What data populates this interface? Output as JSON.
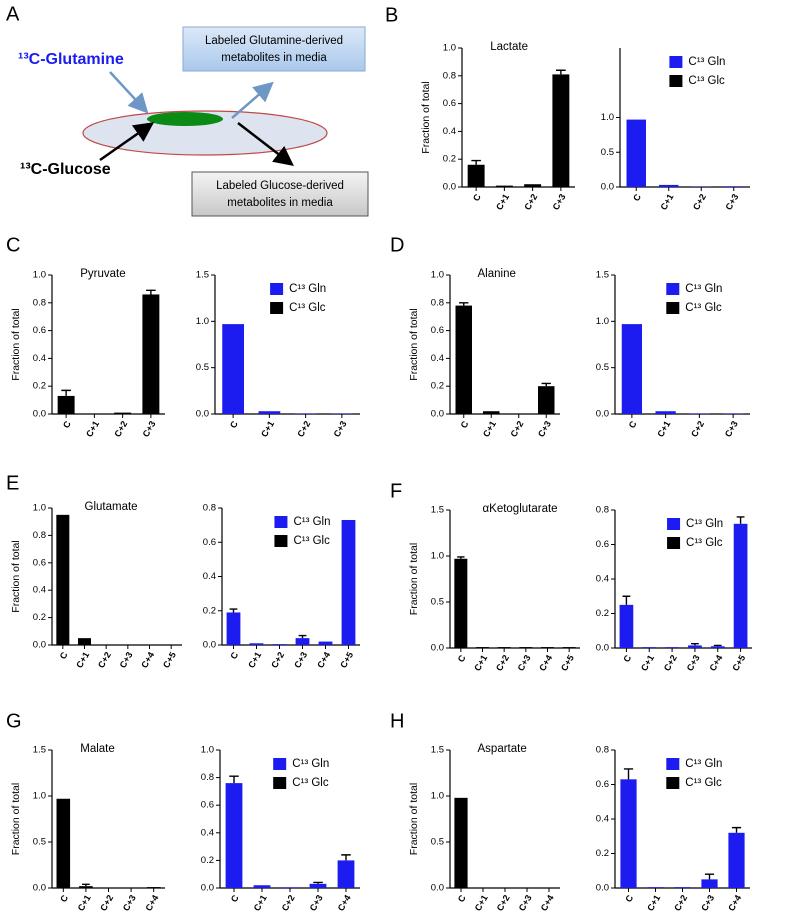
{
  "diagram": {
    "panel": "A",
    "glutamine": "¹³C-Glutamine",
    "glucose": "¹³C-Glucose",
    "glutamine_box": [
      "Labeled Glutamine-derived",
      "metabolites in media"
    ],
    "glucose_box": [
      "Labeled Glucose-derived",
      "metabolites in media"
    ]
  },
  "chart_data": [
    {
      "type": "bar",
      "panel": "B",
      "title": "Lactate",
      "ylabel": "Fraction of total",
      "categories": [
        "C",
        "C+1",
        "C+2",
        "C+3"
      ],
      "values": [
        0.16,
        0.01,
        0.02,
        0.81
      ],
      "errors": [
        0.03,
        null,
        null,
        0.03
      ],
      "color": "#000000",
      "ylim": [
        0,
        1.0
      ],
      "yticks": [
        {
          "value": 0,
          "label": "0.0"
        },
        0.2,
        0.4,
        0.6,
        0.8,
        {
          "value": 1,
          "label": "1.0"
        }
      ]
    },
    {
      "type": "bar",
      "categories": [
        "C",
        "C+1",
        "C+2",
        "C+3"
      ],
      "series": [
        {
          "name": "C¹³ Gln",
          "color": "#1c1cf0",
          "values": [
            0.97,
            0.03,
            0.005,
            0.01
          ],
          "errors": [
            null,
            null,
            null,
            null
          ]
        },
        {
          "name": "C¹³ Glc",
          "color": "#000000",
          "values": [
            null,
            null,
            null,
            null
          ]
        }
      ],
      "ylim": [
        0,
        2.0
      ],
      "yticks": [
        {
          "value": 0,
          "label": "0.0"
        },
        0.5,
        {
          "value": 1,
          "label": "1.0"
        }
      ]
    },
    {
      "type": "bar",
      "panel": "C",
      "title": "Pyruvate",
      "ylabel": "Fraction of total",
      "categories": [
        "C",
        "C+1",
        "C+2",
        "C+3"
      ],
      "values": [
        0.13,
        0.0,
        0.01,
        0.86
      ],
      "errors": [
        0.04,
        null,
        null,
        0.03
      ],
      "color": "#000000",
      "ylim": [
        0,
        1.0
      ],
      "yticks": [
        {
          "value": 0,
          "label": "0.0"
        },
        0.2,
        0.4,
        0.6,
        0.8,
        {
          "value": 1,
          "label": "1.0"
        }
      ]
    },
    {
      "type": "bar",
      "categories": [
        "C",
        "C+1",
        "C+2",
        "C+3"
      ],
      "series": [
        {
          "name": "C¹³ Gln",
          "color": "#1c1cf0",
          "values": [
            0.97,
            0.03,
            0.005,
            0.005
          ],
          "errors": [
            null,
            null,
            null,
            null
          ]
        },
        {
          "name": "C¹³ Glc",
          "color": "#000000",
          "values": [
            null,
            null,
            null,
            null
          ]
        }
      ],
      "ylim": [
        0,
        1.5
      ],
      "yticks": [
        {
          "value": 0,
          "label": "0.0"
        },
        0.5,
        {
          "value": 1,
          "label": "1.0"
        },
        1.5
      ]
    },
    {
      "type": "bar",
      "panel": "D",
      "title": "Alanine",
      "ylabel": "Fraction of total",
      "categories": [
        "C",
        "C+1",
        "C+2",
        "C+3"
      ],
      "values": [
        0.78,
        0.02,
        0.0,
        0.2
      ],
      "errors": [
        0.02,
        null,
        null,
        0.02
      ],
      "color": "#000000",
      "ylim": [
        0,
        1.0
      ],
      "yticks": [
        {
          "value": 0,
          "label": "0.0"
        },
        0.2,
        0.4,
        0.6,
        0.8,
        {
          "value": 1,
          "label": "1.0"
        }
      ]
    },
    {
      "type": "bar",
      "categories": [
        "C",
        "C+1",
        "C+2",
        "C+3"
      ],
      "series": [
        {
          "name": "C¹³ Gln",
          "color": "#1c1cf0",
          "values": [
            0.97,
            0.03,
            0.005,
            0.005
          ],
          "errors": [
            null,
            null,
            null,
            null
          ]
        },
        {
          "name": "C¹³ Glc",
          "color": "#000000",
          "values": [
            null,
            null,
            null,
            null
          ]
        }
      ],
      "ylim": [
        0,
        1.5
      ],
      "yticks": [
        {
          "value": 0,
          "label": "0.0"
        },
        0.5,
        {
          "value": 1,
          "label": "1.0"
        },
        1.5
      ]
    },
    {
      "type": "bar",
      "panel": "E",
      "title": "Glutamate",
      "ylabel": "Fraction of total",
      "categories": [
        "C",
        "C+1",
        "C+2",
        "C+3",
        "C+4",
        "C+5"
      ],
      "values": [
        0.95,
        0.05,
        0.0,
        0.0,
        0.0,
        0.0
      ],
      "errors": [
        null,
        null,
        null,
        null,
        null,
        null
      ],
      "color": "#000000",
      "ylim": [
        0,
        1.0
      ],
      "yticks": [
        {
          "value": 0,
          "label": "0.0"
        },
        0.2,
        0.4,
        0.6,
        0.8,
        {
          "value": 1,
          "label": "1.0"
        }
      ]
    },
    {
      "type": "bar",
      "categories": [
        "C",
        "C+1",
        "C+2",
        "C+3",
        "C+4",
        "C+5"
      ],
      "series": [
        {
          "name": "C¹³ Gln",
          "color": "#1c1cf0",
          "values": [
            0.19,
            0.01,
            0.005,
            0.04,
            0.02,
            0.73
          ],
          "errors": [
            0.02,
            null,
            null,
            0.015,
            null,
            null
          ]
        },
        {
          "name": "C¹³ Glc",
          "color": "#000000",
          "values": [
            null,
            null,
            null,
            null,
            null,
            null
          ]
        }
      ],
      "ylim": [
        0,
        0.8
      ],
      "yticks": [
        {
          "value": 0,
          "label": "0.0"
        },
        0.2,
        0.4,
        0.6,
        0.8
      ]
    },
    {
      "type": "bar",
      "panel": "F",
      "title": "αKetoglutarate",
      "ylabel": "Fraction of total",
      "categories": [
        "C",
        "C+1",
        "C+2",
        "C+3",
        "C+4",
        "C+5"
      ],
      "values": [
        0.97,
        0.01,
        0.01,
        0.01,
        0.01,
        0.01
      ],
      "errors": [
        0.02,
        null,
        null,
        null,
        null,
        null
      ],
      "color": "#000000",
      "ylim": [
        0,
        1.5
      ],
      "yticks": [
        {
          "value": 0,
          "label": "0.0"
        },
        0.5,
        {
          "value": 1,
          "label": "1.0"
        },
        1.5
      ]
    },
    {
      "type": "bar",
      "categories": [
        "C",
        "C+1",
        "C+2",
        "C+3",
        "C+4",
        "C+5"
      ],
      "series": [
        {
          "name": "C¹³ Gln",
          "color": "#1c1cf0",
          "values": [
            0.25,
            0.005,
            0.005,
            0.015,
            0.01,
            0.72
          ],
          "errors": [
            0.05,
            null,
            null,
            0.01,
            0.005,
            0.04
          ]
        },
        {
          "name": "C¹³ Glc",
          "color": "#000000",
          "values": [
            null,
            null,
            null,
            null,
            null,
            null
          ]
        }
      ],
      "ylim": [
        0,
        0.8
      ],
      "yticks": [
        {
          "value": 0,
          "label": "0.0"
        },
        0.2,
        0.4,
        0.6,
        0.8
      ]
    },
    {
      "type": "bar",
      "panel": "G",
      "title": "Malate",
      "ylabel": "Fraction of total",
      "categories": [
        "C",
        "C+1",
        "C+2",
        "C+3",
        "C+4"
      ],
      "values": [
        0.97,
        0.02,
        0.005,
        0.005,
        0.01
      ],
      "errors": [
        null,
        0.02,
        null,
        null,
        null
      ],
      "color": "#000000",
      "ylim": [
        0,
        1.5
      ],
      "yticks": [
        {
          "value": 0,
          "label": "0.0"
        },
        0.5,
        {
          "value": 1,
          "label": "1.0"
        },
        1.5
      ]
    },
    {
      "type": "bar",
      "categories": [
        "C",
        "C+1",
        "C+2",
        "C+3",
        "C+4"
      ],
      "series": [
        {
          "name": "C¹³ Gln",
          "color": "#1c1cf0",
          "values": [
            0.76,
            0.02,
            0.005,
            0.03,
            0.2
          ],
          "errors": [
            0.05,
            null,
            null,
            0.01,
            0.04
          ]
        },
        {
          "name": "C¹³ Glc",
          "color": "#000000",
          "values": [
            null,
            null,
            null,
            null,
            null
          ]
        }
      ],
      "ylim": [
        0,
        1.0
      ],
      "yticks": [
        {
          "value": 0,
          "label": "0.0"
        },
        0.2,
        0.4,
        0.6,
        0.8,
        {
          "value": 1,
          "label": "1.0"
        }
      ]
    },
    {
      "type": "bar",
      "panel": "H",
      "title": "Aspartate",
      "ylabel": "Fraction of total",
      "categories": [
        "C",
        "C+1",
        "C+2",
        "C+3",
        "C+4"
      ],
      "values": [
        0.98,
        0.005,
        0.005,
        0.005,
        0.005
      ],
      "errors": [
        null,
        null,
        null,
        null,
        null
      ],
      "color": "#000000",
      "ylim": [
        0,
        1.5
      ],
      "yticks": [
        {
          "value": 0,
          "label": "0.0"
        },
        0.5,
        {
          "value": 1,
          "label": "1.0"
        },
        1.5
      ]
    },
    {
      "type": "bar",
      "categories": [
        "C",
        "C+1",
        "C+2",
        "C+3",
        "C+4"
      ],
      "series": [
        {
          "name": "C¹³ Gln",
          "color": "#1c1cf0",
          "values": [
            0.63,
            0.005,
            0.005,
            0.05,
            0.32
          ],
          "errors": [
            0.06,
            null,
            null,
            0.03,
            0.03
          ]
        },
        {
          "name": "C¹³ Glc",
          "color": "#000000",
          "values": [
            null,
            null,
            null,
            null,
            null
          ]
        }
      ],
      "ylim": [
        0,
        0.8
      ],
      "yticks": [
        {
          "value": 0,
          "label": "0.0"
        },
        0.2,
        0.4,
        0.6,
        0.8
      ]
    }
  ]
}
